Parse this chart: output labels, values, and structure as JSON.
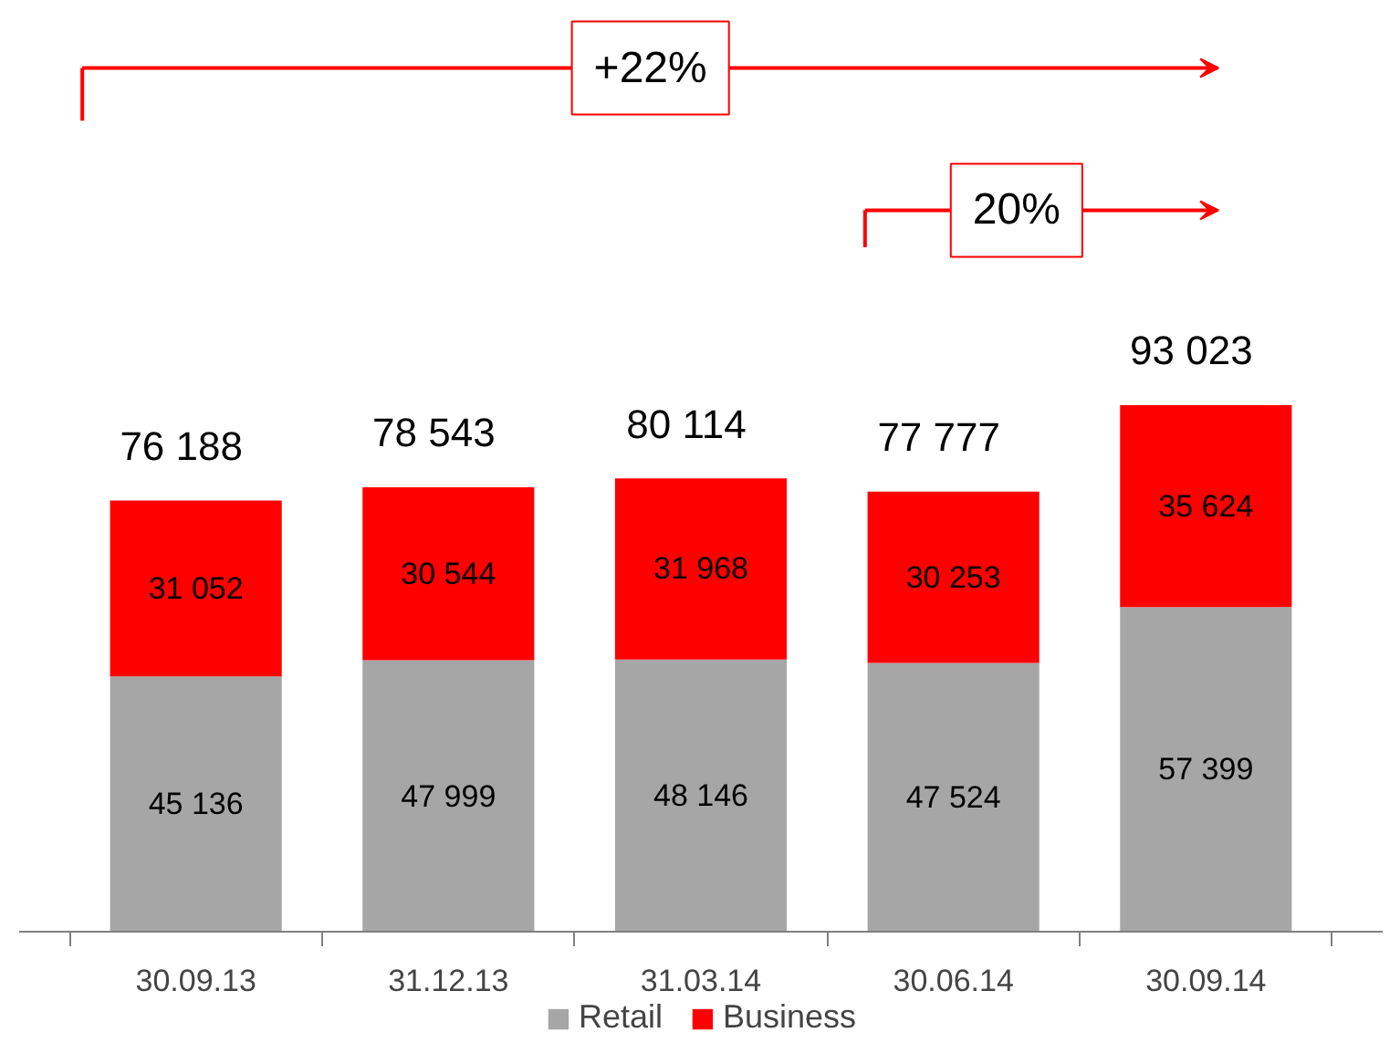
{
  "chart_data": {
    "type": "bar",
    "stacked": true,
    "categories": [
      "30.09.13",
      "31.12.13",
      "31.03.14",
      "30.06.14",
      "30.09.14"
    ],
    "series": [
      {
        "name": "Retail",
        "color": "#a6a6a6",
        "values": [
          45136,
          47999,
          48146,
          47524,
          57399
        ],
        "value_labels": [
          "45 136",
          "47 999",
          "48 146",
          "47 524",
          "57 399"
        ]
      },
      {
        "name": "Business",
        "color": "#ff0000",
        "values": [
          31052,
          30544,
          31968,
          30253,
          35624
        ],
        "value_labels": [
          "31 052",
          "30 544",
          "31 968",
          "30 253",
          "35 624"
        ]
      }
    ],
    "totals": [
      "76 188",
      "78 543",
      "80 114",
      "77 777",
      "93 023"
    ],
    "annotations": [
      "+22%",
      "20%"
    ],
    "legend": "bottom",
    "grid": false,
    "tick_labels": "x"
  }
}
